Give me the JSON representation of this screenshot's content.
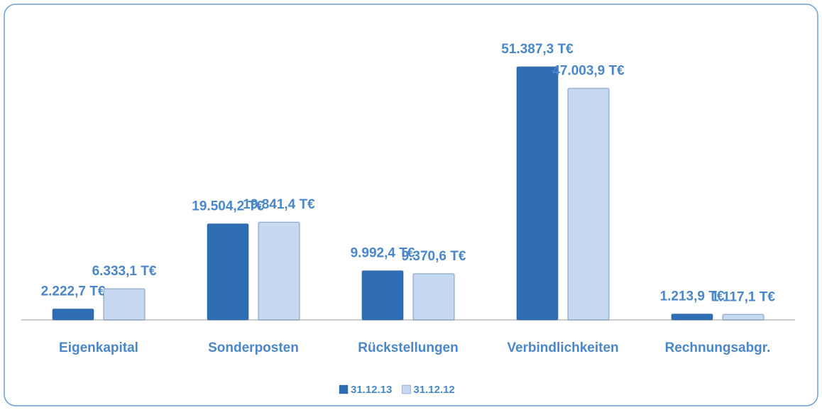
{
  "chart_data": {
    "type": "bar",
    "categories": [
      "Eigenkapital",
      "Sonderposten",
      "Rückstellungen",
      "Verbindlichkeiten",
      "Rechnungsabgr."
    ],
    "series": [
      {
        "name": "31.12.13",
        "color": "#2f6db5",
        "values": [
          2222.7,
          19504.2,
          9992.4,
          51387.3,
          1213.9
        ],
        "value_labels": [
          "2.222,7 T€",
          "19.504,2 T€",
          "9.992,4 T€",
          "51.387,3 T€",
          "1.213,9 T€"
        ]
      },
      {
        "name": "31.12.12",
        "color": "#c6d9f0",
        "values": [
          6333.1,
          19841.4,
          9370.6,
          47003.9,
          1117.1
        ],
        "value_labels": [
          "6.333,1 T€",
          "19.841,4 T€",
          "9.370,6 T€",
          "47.003,9 T€",
          "1.117,1 T€"
        ]
      }
    ],
    "ylim": [
      0,
      55000
    ],
    "legend": "bottom"
  }
}
